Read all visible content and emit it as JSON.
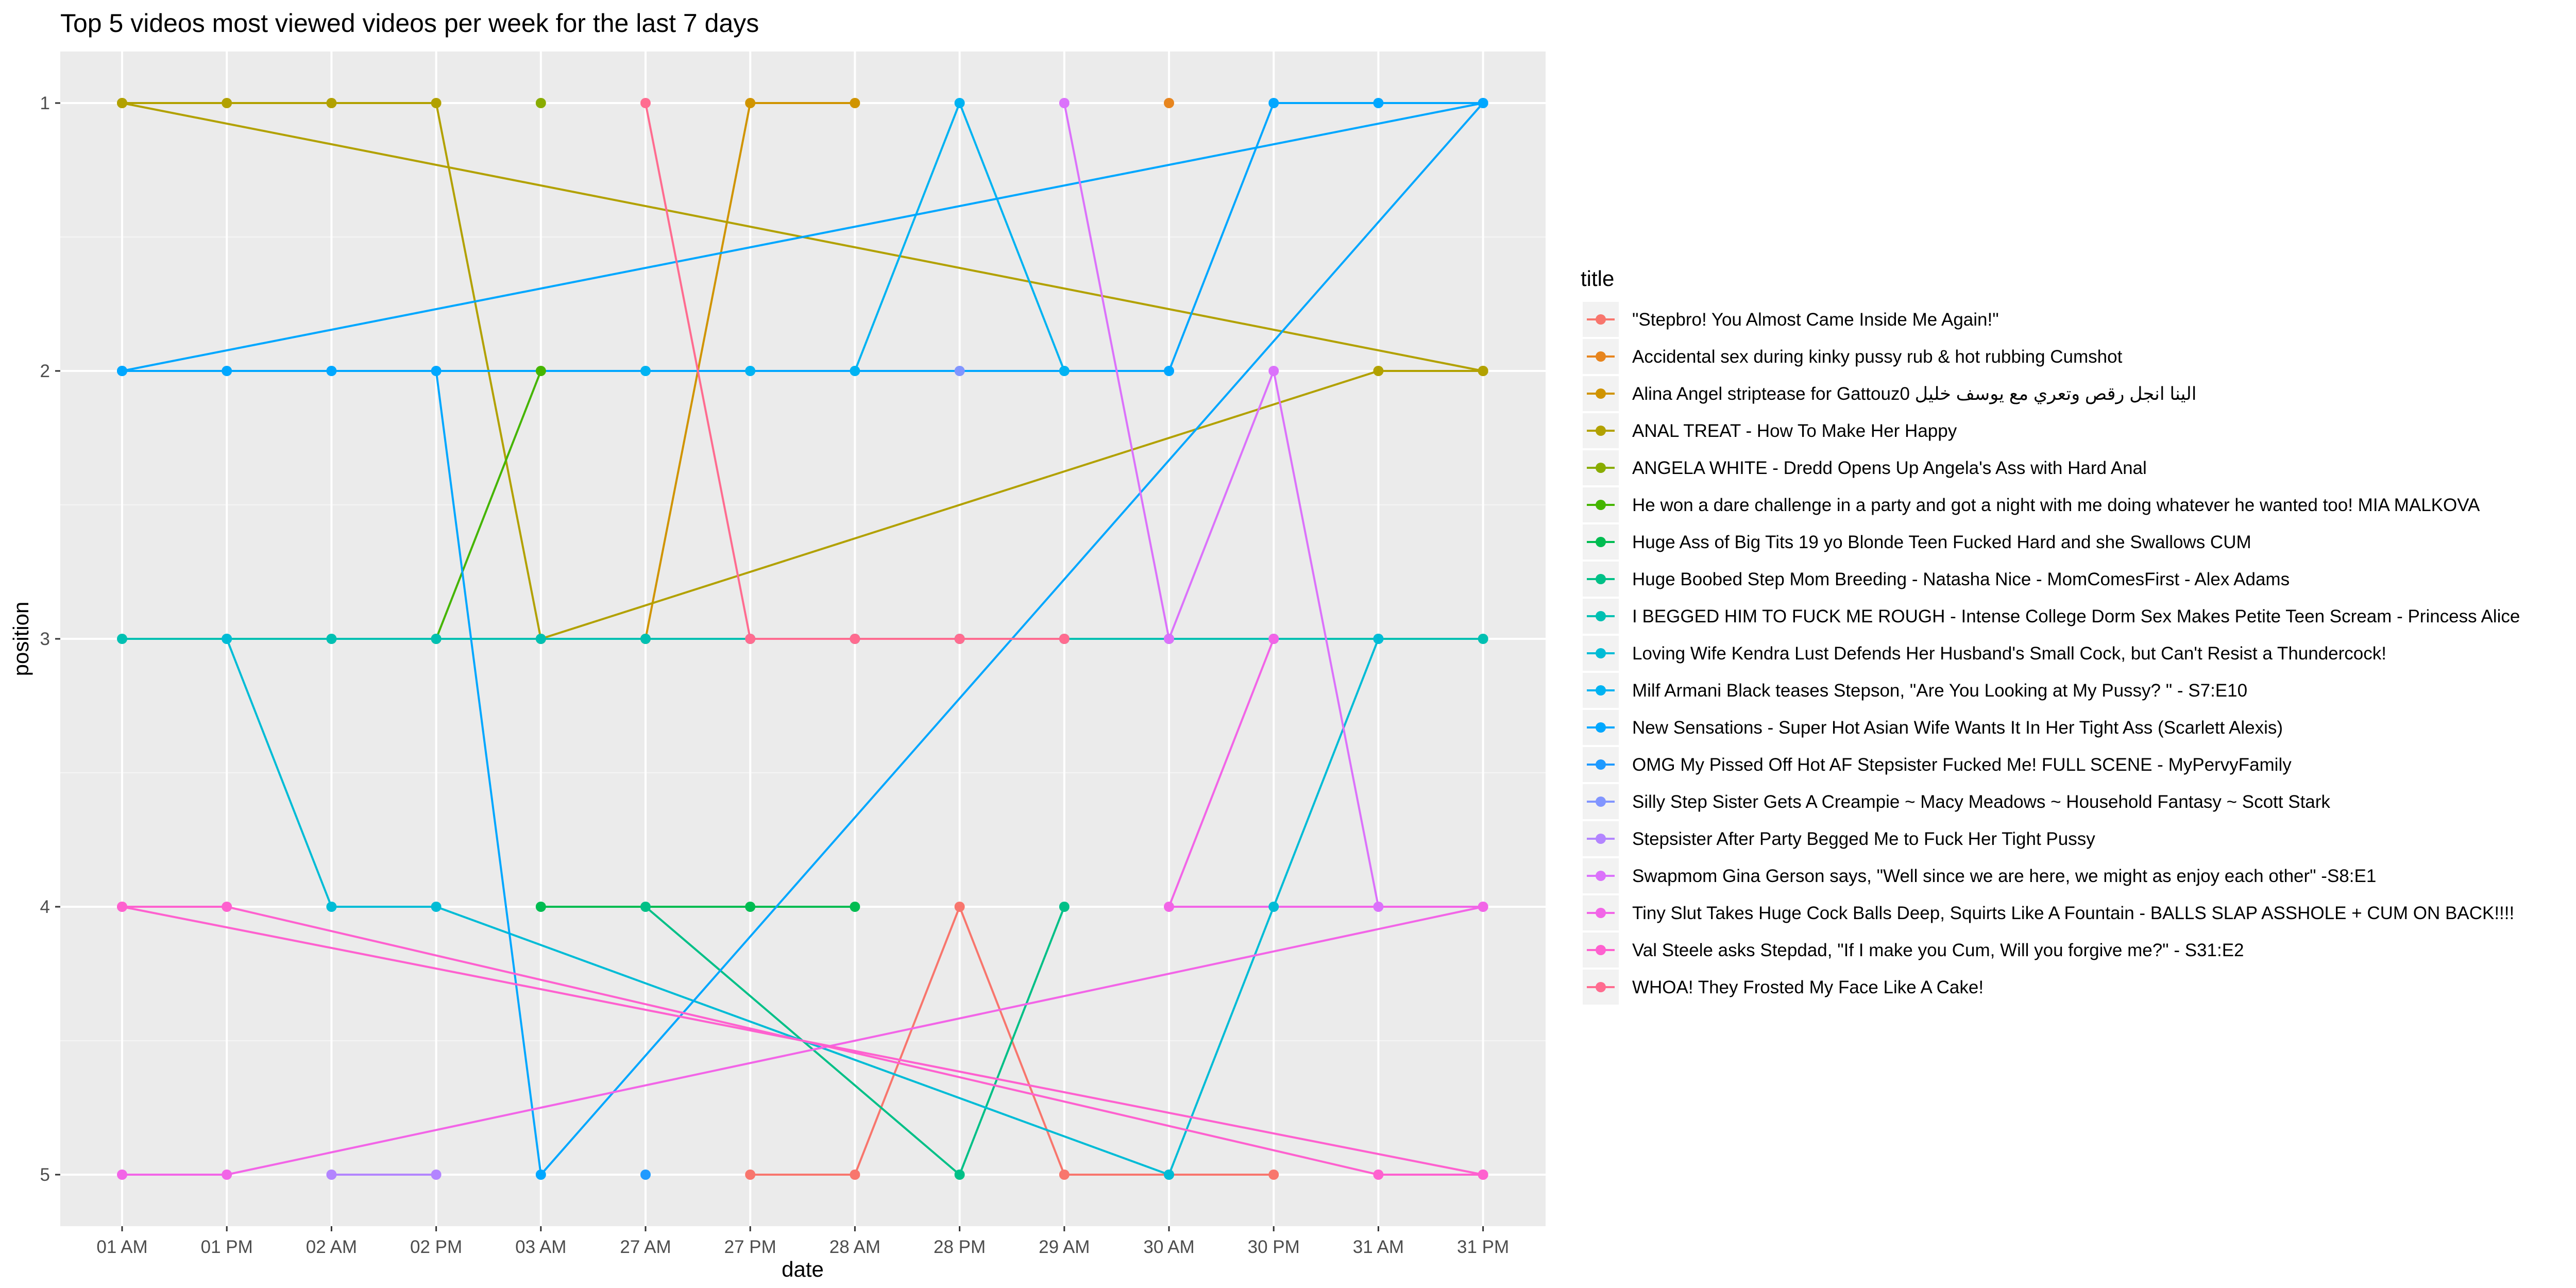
{
  "chart_data": {
    "type": "line",
    "title": "Top 5 videos most viewed videos per week for the last 7 days",
    "xlabel": "date",
    "ylabel": "position",
    "x_categories": [
      "01 AM",
      "01 PM",
      "02 AM",
      "02 PM",
      "03 AM",
      "27 AM",
      "27 PM",
      "28 AM",
      "28 PM",
      "29 AM",
      "30 AM",
      "30 PM",
      "31 AM",
      "31 PM"
    ],
    "y_ticks": [
      1,
      2,
      3,
      4,
      5
    ],
    "y_reversed": true,
    "ylim": [
      0.7,
      5.2
    ],
    "grid": true,
    "legend_title": "title",
    "legend_position": "right",
    "series": [
      {
        "name": "\"Stepbro! You Almost Came Inside Me Again!\"",
        "color": "#F8766D",
        "points": [
          [
            "27 PM",
            5
          ],
          [
            "28 AM",
            5
          ],
          [
            "28 PM",
            4
          ],
          [
            "29 AM",
            5
          ],
          [
            "30 AM",
            5
          ],
          [
            "30 PM",
            5
          ]
        ]
      },
      {
        "name": "Accidental sex during kinky pussy rub & hot rubbing Cumshot",
        "color": "#E7851E",
        "points": [
          [
            "30 AM",
            1
          ]
        ]
      },
      {
        "name": "Alina Angel striptease for Gattouz0 الينا انجل رقص وتعري مع يوسف خليل",
        "color": "#D09400",
        "points": [
          [
            "27 AM",
            3
          ],
          [
            "27 PM",
            1
          ],
          [
            "28 AM",
            1
          ]
        ]
      },
      {
        "name": "ANAL TREAT - How To Make Her Happy",
        "color": "#B2A100",
        "points": [
          [
            "01 AM",
            1
          ],
          [
            "01 PM",
            1
          ],
          [
            "02 AM",
            1
          ],
          [
            "02 PM",
            1
          ],
          [
            "03 AM",
            3
          ],
          [
            "31 AM",
            2
          ],
          [
            "31 PM",
            2
          ],
          [
            "01 AM",
            1
          ],
          [
            "31 PM",
            2
          ]
        ]
      },
      {
        "name": "ANGELA WHITE - Dredd Opens Up Angela's Ass with Hard Anal",
        "color": "#89AC00",
        "points": [
          [
            "03 AM",
            1
          ]
        ]
      },
      {
        "name": "He won a dare challenge in a party and got a night with me doing whatever he wanted too! MIA MALKOVA",
        "color": "#45B500",
        "points": [
          [
            "02 PM",
            3
          ],
          [
            "03 AM",
            2
          ]
        ]
      },
      {
        "name": "Huge Ass of Big Tits 19 yo Blonde Teen Fucked Hard and she Swallows CUM",
        "color": "#00BC51",
        "points": [
          [
            "03 AM",
            4
          ],
          [
            "27 PM",
            4
          ],
          [
            "28 AM",
            4
          ]
        ]
      },
      {
        "name": "Huge Boobed Step Mom Breeding - Natasha Nice - MomComesFirst - Alex Adams",
        "color": "#00C087",
        "points": [
          [
            "27 AM",
            4
          ],
          [
            "28 PM",
            5
          ],
          [
            "29 AM",
            4
          ]
        ]
      },
      {
        "name": "I BEGGED HIM TO FUCK ME ROUGH - Intense College Dorm Sex Makes Petite Teen Scream - Princess Alice",
        "color": "#00C0B2",
        "points": [
          [
            "01 AM",
            3
          ],
          [
            "01 PM",
            3
          ],
          [
            "02 AM",
            3
          ],
          [
            "02 PM",
            3
          ],
          [
            "03 AM",
            3
          ],
          [
            "27 AM",
            3
          ],
          [
            "27 PM",
            3
          ],
          [
            "28 AM",
            3
          ],
          [
            "28 PM",
            3
          ],
          [
            "29 AM",
            3
          ],
          [
            "30 AM",
            3
          ],
          [
            "30 PM",
            3
          ],
          [
            "31 AM",
            3
          ],
          [
            "31 PM",
            3
          ]
        ]
      },
      {
        "name": "Loving Wife Kendra Lust Defends Her Husband's Small Cock, but Can't Resist a Thundercock!",
        "color": "#00BCD6",
        "points": [
          [
            "01 PM",
            3
          ],
          [
            "02 AM",
            4
          ],
          [
            "02 PM",
            4
          ],
          [
            "30 AM",
            5
          ],
          [
            "30 PM",
            4
          ],
          [
            "31 AM",
            3
          ]
        ]
      },
      {
        "name": "Milf Armani Black teases Stepson, \"Are You Looking at My Pussy? \" - S7:E10",
        "color": "#00B3F2",
        "points": [
          [
            "27 AM",
            2
          ],
          [
            "27 PM",
            2
          ],
          [
            "28 AM",
            2
          ],
          [
            "28 PM",
            1
          ],
          [
            "29 AM",
            2
          ]
        ]
      },
      {
        "name": "New Sensations - Super Hot Asian Wife Wants It In Her Tight Ass (Scarlett Alexis)",
        "color": "#00A7FF",
        "points": [
          [
            "01 AM",
            2
          ],
          [
            "01 PM",
            2
          ],
          [
            "02 AM",
            2
          ],
          [
            "02 PM",
            2
          ],
          [
            "03 AM",
            5
          ],
          [
            "31 PM",
            1
          ],
          [
            "01 AM",
            2
          ],
          [
            "30 AM",
            2
          ],
          [
            "30 PM",
            1
          ],
          [
            "31 AM",
            1
          ],
          [
            "31 PM",
            1
          ]
        ]
      },
      {
        "name": "OMG My Pissed Off Hot AF Stepsister Fucked Me! FULL SCENE - MyPervyFamily",
        "color": "#1F9AFF",
        "points": [
          [
            "27 AM",
            5
          ]
        ]
      },
      {
        "name": "Silly Step Sister Gets A Creampie ~ Macy Meadows ~ Household Fantasy ~ Scott Stark",
        "color": "#8195FF",
        "points": [
          [
            "28 PM",
            2
          ]
        ]
      },
      {
        "name": "Stepsister After Party Begged Me to Fuck Her Tight Pussy",
        "color": "#B385FF",
        "points": [
          [
            "02 AM",
            5
          ],
          [
            "02 PM",
            5
          ]
        ]
      },
      {
        "name": "Swapmom Gina Gerson says, \"Well since we are here, we might as enjoy each other\" -S8:E1",
        "color": "#DB72FB",
        "points": [
          [
            "29 AM",
            1
          ],
          [
            "30 AM",
            3
          ],
          [
            "30 PM",
            2
          ],
          [
            "31 AM",
            4
          ],
          [
            "31 PM",
            4
          ]
        ]
      },
      {
        "name": "Tiny Slut Takes Huge Cock Balls Deep, Squirts Like A Fountain - BALLS SLAP ASSHOLE + CUM ON BACK!!!!",
        "color": "#F265E7",
        "points": [
          [
            "01 AM",
            5
          ],
          [
            "01 PM",
            5
          ],
          [
            "31 PM",
            4
          ],
          [
            "30 AM",
            4
          ],
          [
            "30 PM",
            3
          ]
        ]
      },
      {
        "name": "Val Steele asks Stepdad, \"If I make you Cum, Will you forgive me?\" - S31:E2",
        "color": "#FE61CF",
        "points": [
          [
            "01 AM",
            4
          ],
          [
            "01 PM",
            4
          ],
          [
            "31 AM",
            5
          ],
          [
            "31 PM",
            5
          ],
          [
            "01 AM",
            4
          ],
          [
            "31 PM",
            5
          ]
        ]
      },
      {
        "name": "WHOA! They Frosted My Face Like A Cake!",
        "color": "#FF6C90",
        "points": [
          [
            "27 AM",
            1
          ],
          [
            "27 PM",
            3
          ],
          [
            "28 AM",
            3
          ],
          [
            "28 PM",
            3
          ],
          [
            "29 AM",
            3
          ]
        ]
      }
    ]
  }
}
